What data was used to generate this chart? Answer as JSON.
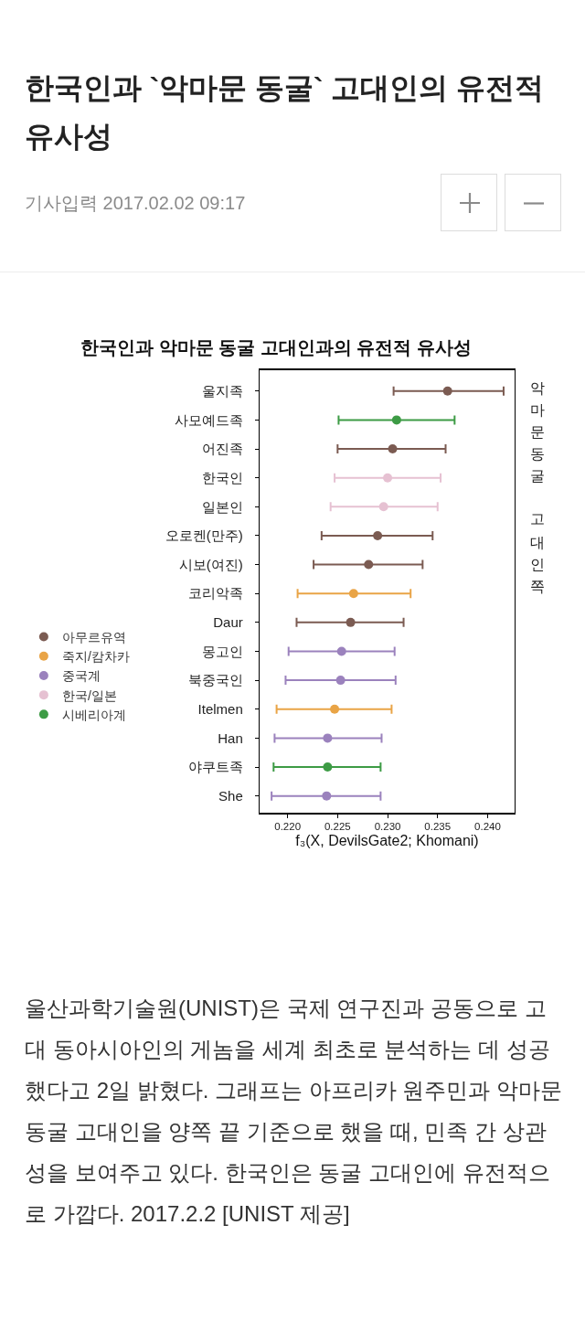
{
  "chart_data": {
    "type": "scatter",
    "orientation": "horizontal",
    "title": "한국인과 `악마문 동굴` 고대인의 유전적 유사성",
    "subtitle": "한국인과 악마문 동굴 고대인과의 유전적 유사성",
    "xlabel": "f₃(X, DevilsGate2; Khomani)",
    "annotations": [
      "기사입력 2017.02.02 09:17",
      "악마문동굴 고대인쪽",
      "울산과학기술원(UNIST)은 국제 연구진과 공동으로 고대 동아시아인의 게놈을 세계 최초로 분석하는 데 성공했다고 2일 밝혔다. 그래프는 아프리카 원주민과 악마문 동굴 고대인을 양쪽 끝 기준으로 했을 때, 민족 간 상관성을 보여주고 있다. 한국인은 동굴 고대인에 유전적으로 가깝다. 2017.2.2 [UNIST 제공]"
    ],
    "categories": [
      "울지족",
      "사모예드족",
      "어진족",
      "한국인",
      "일본인",
      "오로켄(만주)",
      "시보(여진)",
      "코리악족",
      "Daur",
      "몽고인",
      "북중국인",
      "Itelmen",
      "Han",
      "야쿠트족",
      "She"
    ],
    "series": [
      {
        "name": "아무르유역",
        "color": "#7b5b52",
        "values": [
          0.236,
          null,
          0.2305,
          null,
          null,
          0.229,
          0.2281,
          null,
          0.2263,
          null,
          null,
          null,
          null,
          null,
          null
        ],
        "errors": [
          [
            0.2306,
            0.2416
          ],
          null,
          [
            0.225,
            0.2358
          ],
          null,
          null,
          [
            0.2234,
            0.2345
          ],
          [
            0.2226,
            0.2335
          ],
          null,
          [
            0.2209,
            0.2316
          ],
          null,
          null,
          null,
          null,
          null,
          null
        ]
      },
      {
        "name": "죽지/캄차카",
        "color": "#e9a446",
        "values": [
          null,
          null,
          null,
          null,
          null,
          null,
          null,
          0.2266,
          null,
          null,
          null,
          0.2247,
          null,
          null,
          null
        ],
        "errors": [
          null,
          null,
          null,
          null,
          null,
          null,
          null,
          [
            0.221,
            0.2323
          ],
          null,
          null,
          null,
          [
            0.2189,
            0.2304
          ],
          null,
          null,
          null
        ]
      },
      {
        "name": "중국계",
        "color": "#9b82bd",
        "values": [
          null,
          null,
          null,
          null,
          null,
          null,
          null,
          null,
          null,
          0.2254,
          0.2253,
          null,
          0.224,
          null,
          0.2239
        ],
        "errors": [
          null,
          null,
          null,
          null,
          null,
          null,
          null,
          null,
          null,
          [
            0.2201,
            0.2307
          ],
          [
            0.2198,
            0.2308
          ],
          null,
          [
            0.2187,
            0.2294
          ],
          null,
          [
            0.2184,
            0.2293
          ]
        ]
      },
      {
        "name": "한국/일본",
        "color": "#e6c1d2",
        "values": [
          null,
          null,
          null,
          0.23,
          0.2296,
          null,
          null,
          null,
          null,
          null,
          null,
          null,
          null,
          null,
          null
        ],
        "errors": [
          null,
          null,
          null,
          [
            0.2247,
            0.2353
          ],
          [
            0.2243,
            0.235
          ],
          null,
          null,
          null,
          null,
          null,
          null,
          null,
          null,
          null,
          null
        ]
      },
      {
        "name": "시베리아계",
        "color": "#3d9b45",
        "values": [
          null,
          0.2309,
          null,
          null,
          null,
          null,
          null,
          null,
          null,
          null,
          null,
          null,
          null,
          0.224,
          null
        ],
        "errors": [
          null,
          [
            0.2251,
            0.2367
          ],
          null,
          null,
          null,
          null,
          null,
          null,
          null,
          null,
          null,
          null,
          null,
          [
            0.2186,
            0.2293
          ],
          null
        ]
      }
    ],
    "xlim": [
      0.2172,
      0.2427
    ],
    "xticks": [
      {
        "value": 0.22,
        "label": "0.220"
      },
      {
        "value": 0.225,
        "label": "0.225"
      },
      {
        "value": 0.23,
        "label": "0.230"
      },
      {
        "value": 0.235,
        "label": "0.235"
      },
      {
        "value": 0.24,
        "label": "0.240"
      }
    ],
    "grid": false,
    "legend": "left",
    "marker": "circle"
  }
}
